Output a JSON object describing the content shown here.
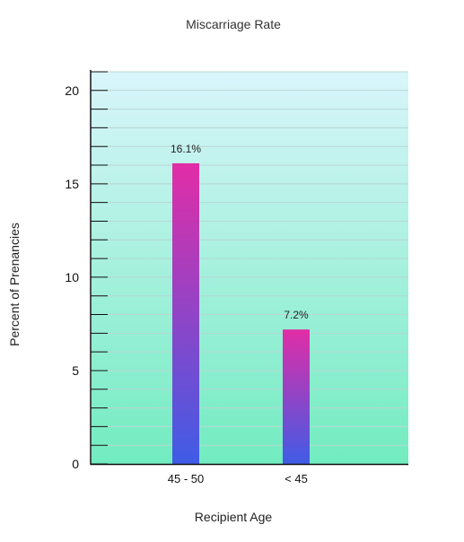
{
  "chart_data": {
    "type": "bar",
    "title": "Miscarriage Rate",
    "xlabel": "Recipient Age",
    "ylabel": "Percent of Prenancies",
    "categories": [
      "45 - 50",
      "< 45"
    ],
    "values": [
      16.1,
      7.2
    ],
    "value_labels": [
      "16.1%",
      "7.2%"
    ],
    "ylim": [
      0,
      21
    ],
    "yticks": [
      0,
      5,
      10,
      15,
      20
    ],
    "y_minor_step": 1,
    "grid": true,
    "colors": {
      "background_top": "#d9f5fb",
      "background_bottom": "#72ecc0",
      "bar_top": "#e22da6",
      "bar_bottom": "#3f5ce6",
      "gridline": "#b9d6d2",
      "axis": "#111111"
    }
  }
}
